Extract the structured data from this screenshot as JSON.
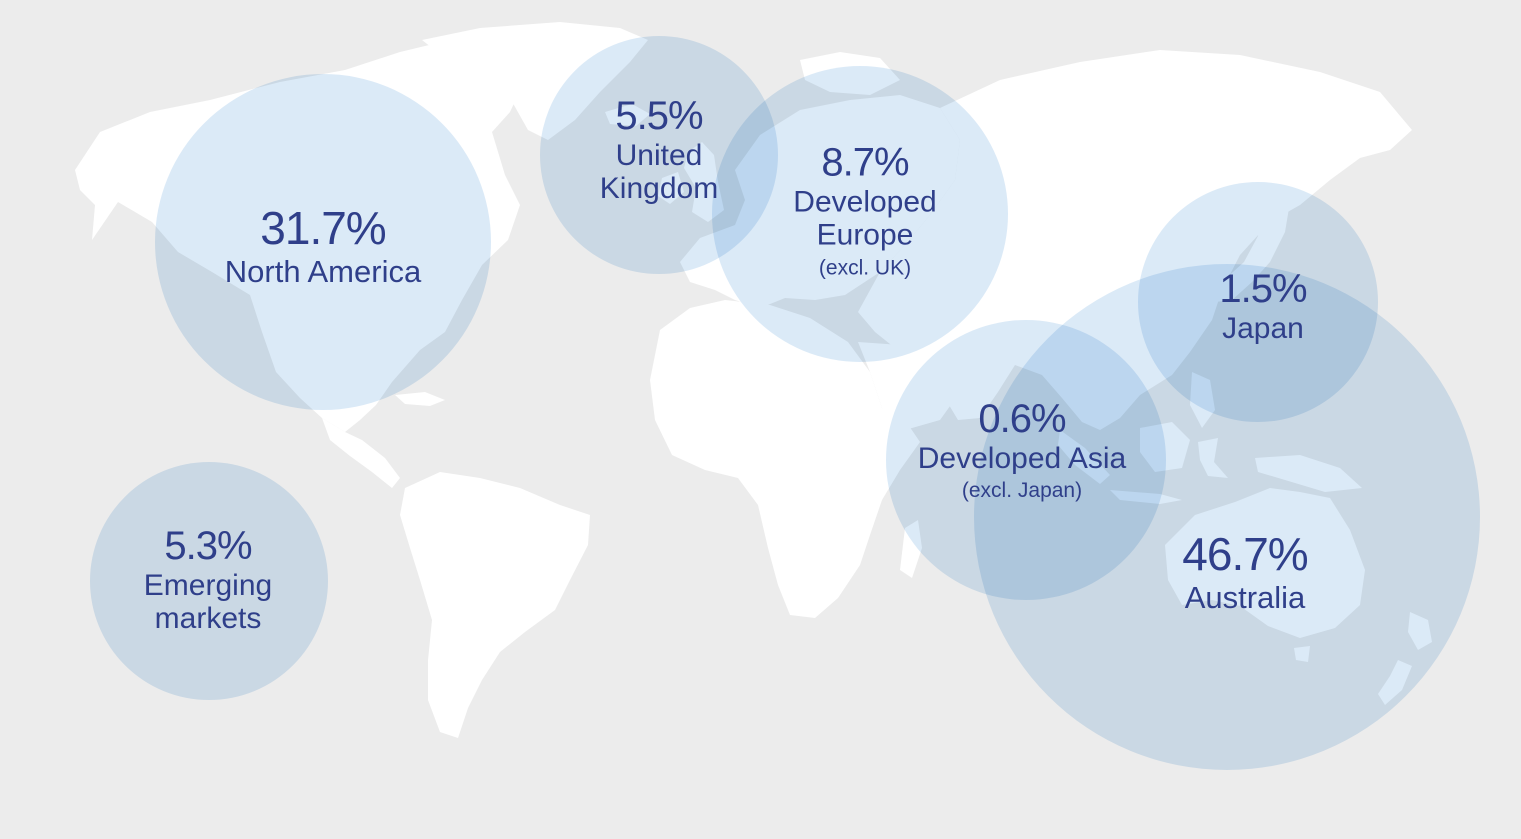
{
  "colors": {
    "background": "#ececec",
    "land": "#ffffff",
    "bubble": "#bed8f0",
    "text": "#2f3f8a"
  },
  "regions": [
    {
      "id": "north-america",
      "percent": "31.7%",
      "name_lines": [
        "North America"
      ],
      "sub": ""
    },
    {
      "id": "united-kingdom",
      "percent": "5.5%",
      "name_lines": [
        "United",
        "Kingdom"
      ],
      "sub": ""
    },
    {
      "id": "developed-europe",
      "percent": "8.7%",
      "name_lines": [
        "Developed",
        "Europe"
      ],
      "sub": "(excl. UK)"
    },
    {
      "id": "japan",
      "percent": "1.5%",
      "name_lines": [
        "Japan"
      ],
      "sub": ""
    },
    {
      "id": "developed-asia",
      "percent": "0.6%",
      "name_lines": [
        "Developed Asia"
      ],
      "sub": "(excl. Japan)"
    },
    {
      "id": "australia",
      "percent": "46.7%",
      "name_lines": [
        "Australia"
      ],
      "sub": ""
    },
    {
      "id": "emerging-markets",
      "percent": "5.3%",
      "name_lines": [
        "Emerging",
        "markets"
      ],
      "sub": ""
    }
  ]
}
